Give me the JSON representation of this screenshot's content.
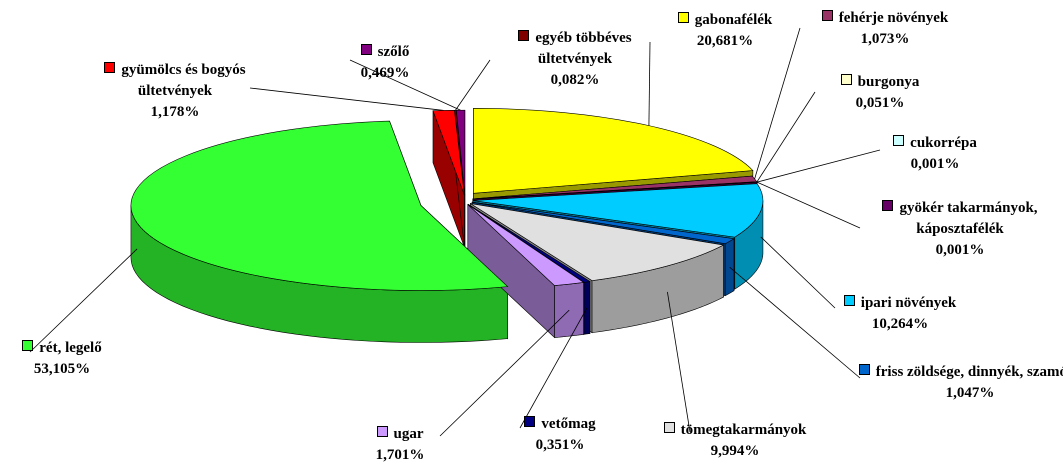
{
  "chart_data": {
    "type": "pie3d",
    "categories": [
      "gabonafélék",
      "fehérje növények",
      "burgonya",
      "cukorrépa",
      "gyökér takarmányok, káposztafélék",
      "ipari növények",
      "friss zöldsége, dinnyék, szamóca",
      "tömegtakarmányok",
      "vetőmag",
      "ugar",
      "rét, legelő",
      "gyümölcs és bogyós ültetvények",
      "egyéb többéves ültetvények",
      "szőlő"
    ],
    "values": [
      20.681,
      1.073,
      0.051,
      0.001,
      0.001,
      10.264,
      1.047,
      9.994,
      0.351,
      1.701,
      53.105,
      1.178,
      0.082,
      0.469
    ],
    "value_labels": [
      "20,681%",
      "1,073%",
      "0,051%",
      "0,001%",
      "0,001%",
      "10,264%",
      "1,047%",
      "9,994%",
      "0,351%",
      "1,701%",
      "53,105%",
      "1,178%",
      "0,082%",
      "0,469%"
    ],
    "colors": [
      "#ffff00",
      "#993366",
      "#ffffcc",
      "#ccffff",
      "#660066",
      "#00ccff",
      "#0066cc",
      "#e0e0e0",
      "#000080",
      "#cc99ff",
      "#33ff33",
      "#ff0000",
      "#800000",
      "#800080"
    ]
  }
}
